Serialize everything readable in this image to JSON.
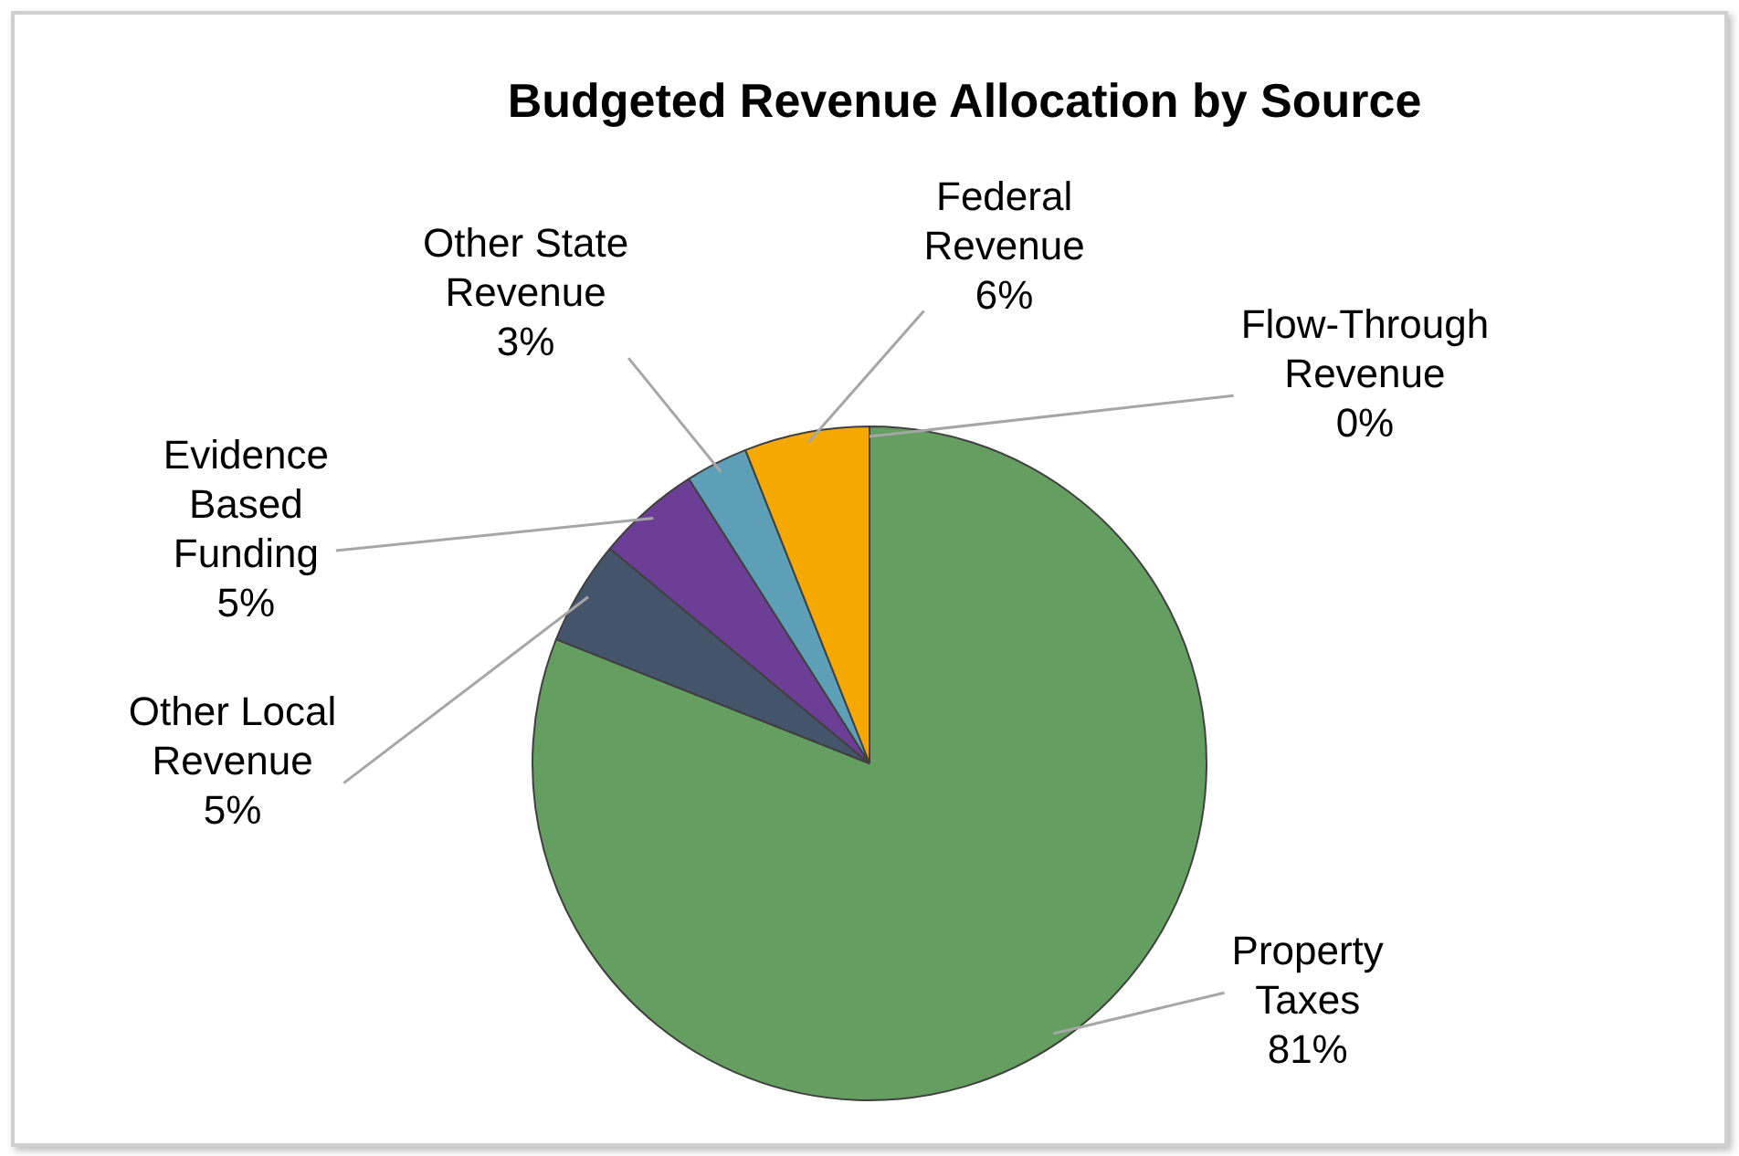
{
  "chart_data": {
    "type": "pie",
    "title": "Budgeted Revenue Allocation by Source",
    "categories": [
      "Property Taxes",
      "Other Local Revenue",
      "Evidence Based Funding",
      "Other State Revenue",
      "Federal Revenue",
      "Flow-Through Revenue"
    ],
    "values": [
      81,
      5,
      5,
      3,
      6,
      0
    ],
    "colors": [
      "#659e61",
      "#44546a",
      "#6c3e96",
      "#5e9fb8",
      "#f5a800",
      "#a5a5a5"
    ],
    "value_labels": [
      "81%",
      "5%",
      "5%",
      "3%",
      "6%",
      "0%"
    ],
    "legend": false
  }
}
